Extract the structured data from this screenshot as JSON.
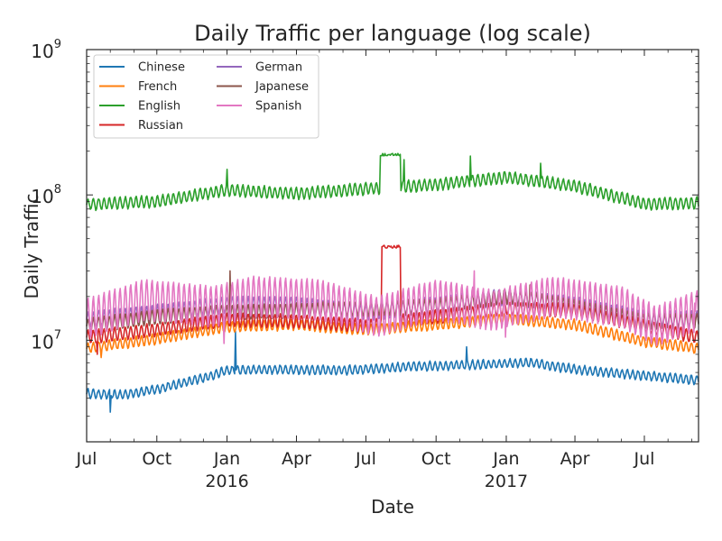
{
  "chart_data": {
    "type": "line",
    "title": "Daily Traffic per language (log scale)",
    "xlabel": "Date",
    "ylabel": "Daily Traffic",
    "y_scale": "log",
    "ylim": [
      2000000,
      1000000000
    ],
    "xlim": [
      "2015-07-01",
      "2017-09-10"
    ],
    "grid": false,
    "legend_position": "top-left",
    "x_ticks": [
      {
        "date": "2015-07-01",
        "label": "Jul",
        "year": ""
      },
      {
        "date": "2015-10-01",
        "label": "Oct",
        "year": ""
      },
      {
        "date": "2016-01-01",
        "label": "Jan",
        "year": "2016"
      },
      {
        "date": "2016-04-01",
        "label": "Apr",
        "year": ""
      },
      {
        "date": "2016-07-01",
        "label": "Jul",
        "year": ""
      },
      {
        "date": "2016-10-01",
        "label": "Oct",
        "year": ""
      },
      {
        "date": "2017-01-01",
        "label": "Jan",
        "year": "2017"
      },
      {
        "date": "2017-04-01",
        "label": "Apr",
        "year": ""
      },
      {
        "date": "2017-07-01",
        "label": "Jul",
        "year": ""
      }
    ],
    "y_ticks": [
      {
        "value": 10000000,
        "base": "10",
        "exp": "7"
      },
      {
        "value": 100000000,
        "base": "10",
        "exp": "8"
      },
      {
        "value": 1000000000,
        "base": "10",
        "exp": "9"
      }
    ],
    "legend_columns": [
      [
        "Chinese",
        "French",
        "English",
        "Russian"
      ],
      [
        "German",
        "Japanese",
        "Spanish"
      ]
    ],
    "series": [
      {
        "name": "Chinese",
        "color": "#1f77b4",
        "weekly_amp": 0.03,
        "points": [
          [
            "2015-07-01",
            4300000
          ],
          [
            "2015-08-15",
            4200000
          ],
          [
            "2015-10-01",
            4600000
          ],
          [
            "2015-12-01",
            5500000
          ],
          [
            "2016-01-01",
            6200000
          ],
          [
            "2016-03-01",
            6300000
          ],
          [
            "2016-06-01",
            6200000
          ],
          [
            "2016-09-01",
            6600000
          ],
          [
            "2016-12-01",
            6800000
          ],
          [
            "2017-02-01",
            7000000
          ],
          [
            "2017-04-01",
            6300000
          ],
          [
            "2017-06-01",
            5900000
          ],
          [
            "2017-09-10",
            5300000
          ]
        ],
        "events": [
          [
            "2015-08-01",
            3200000
          ],
          [
            "2016-01-12",
            11500000
          ],
          [
            "2016-11-10",
            9000000
          ]
        ]
      },
      {
        "name": "French",
        "color": "#ff7f0e",
        "weekly_amp": 0.035,
        "points": [
          [
            "2015-07-01",
            8800000
          ],
          [
            "2015-10-01",
            10200000
          ],
          [
            "2016-01-01",
            12300000
          ],
          [
            "2016-04-01",
            12800000
          ],
          [
            "2016-07-01",
            11800000
          ],
          [
            "2016-10-01",
            12800000
          ],
          [
            "2017-01-01",
            14000000
          ],
          [
            "2017-04-01",
            12800000
          ],
          [
            "2017-07-01",
            9800000
          ],
          [
            "2017-09-10",
            8800000
          ]
        ],
        "events": [
          [
            "2015-07-20",
            7600000
          ]
        ]
      },
      {
        "name": "English",
        "color": "#2ca02c",
        "weekly_amp": 0.04,
        "points": [
          [
            "2015-07-01",
            86000000
          ],
          [
            "2015-10-01",
            90000000
          ],
          [
            "2016-01-01",
            108000000
          ],
          [
            "2016-04-01",
            102000000
          ],
          [
            "2016-07-01",
            110000000
          ],
          [
            "2016-10-01",
            118000000
          ],
          [
            "2017-01-01",
            132000000
          ],
          [
            "2017-04-01",
            115000000
          ],
          [
            "2017-07-01",
            87000000
          ],
          [
            "2017-09-10",
            88000000
          ]
        ],
        "events": [
          [
            "2016-01-01",
            150000000
          ],
          [
            "2016-08-20",
            175000000
          ],
          [
            "2016-11-15",
            185000000
          ],
          [
            "2017-02-15",
            165000000
          ]
        ],
        "plateau": {
          "start": "2016-07-20",
          "end": "2016-08-15",
          "value": 190000000
        }
      },
      {
        "name": "Russian",
        "color": "#d62728",
        "weekly_amp": 0.045,
        "points": [
          [
            "2015-07-01",
            10500000
          ],
          [
            "2015-10-01",
            11800000
          ],
          [
            "2016-01-01",
            13800000
          ],
          [
            "2016-04-01",
            13500000
          ],
          [
            "2016-07-01",
            12500000
          ],
          [
            "2016-10-01",
            14500000
          ],
          [
            "2017-01-01",
            16500000
          ],
          [
            "2017-04-01",
            16000000
          ],
          [
            "2017-07-01",
            12500000
          ],
          [
            "2017-09-10",
            10500000
          ]
        ],
        "events": [
          [
            "2015-07-15",
            8000000
          ]
        ],
        "plateau": {
          "start": "2016-07-22",
          "end": "2016-08-15",
          "value": 44000000
        }
      },
      {
        "name": "German",
        "color": "#9467bd",
        "weekly_amp": 0.055,
        "points": [
          [
            "2015-07-01",
            13800000
          ],
          [
            "2015-10-01",
            15500000
          ],
          [
            "2016-01-01",
            17500000
          ],
          [
            "2016-04-01",
            17500000
          ],
          [
            "2016-07-01",
            15500000
          ],
          [
            "2016-10-01",
            17500000
          ],
          [
            "2017-01-01",
            20000000
          ],
          [
            "2017-04-01",
            17500000
          ],
          [
            "2017-07-01",
            14000000
          ],
          [
            "2017-09-10",
            14000000
          ]
        ],
        "events": []
      },
      {
        "name": "Japanese",
        "color": "#8c564b",
        "weekly_amp": 0.05,
        "points": [
          [
            "2015-07-01",
            12500000
          ],
          [
            "2015-10-01",
            14500000
          ],
          [
            "2016-01-01",
            15500000
          ],
          [
            "2016-04-01",
            16000000
          ],
          [
            "2016-07-01",
            16500000
          ],
          [
            "2016-10-01",
            17000000
          ],
          [
            "2017-01-01",
            20000000
          ],
          [
            "2017-04-01",
            17000000
          ],
          [
            "2017-07-01",
            13500000
          ],
          [
            "2017-09-10",
            13500000
          ]
        ],
        "events": [
          [
            "2016-01-05",
            30000000
          ],
          [
            "2017-02-01",
            24000000
          ]
        ]
      },
      {
        "name": "Spanish",
        "color": "#e377c2",
        "weekly_amp": 0.14,
        "points": [
          [
            "2015-07-01",
            14000000
          ],
          [
            "2015-09-15",
            19000000
          ],
          [
            "2015-12-15",
            17000000
          ],
          [
            "2016-02-01",
            20000000
          ],
          [
            "2016-05-01",
            19000000
          ],
          [
            "2016-07-15",
            14500000
          ],
          [
            "2016-10-01",
            19000000
          ],
          [
            "2016-12-15",
            16000000
          ],
          [
            "2017-03-01",
            20000000
          ],
          [
            "2017-06-01",
            17000000
          ],
          [
            "2017-07-15",
            12500000
          ],
          [
            "2017-09-10",
            16000000
          ]
        ],
        "events": [
          [
            "2015-12-28",
            9500000
          ],
          [
            "2016-11-20",
            30000000
          ],
          [
            "2016-12-31",
            10500000
          ],
          [
            "2017-09-05",
            18000000
          ]
        ]
      }
    ]
  }
}
